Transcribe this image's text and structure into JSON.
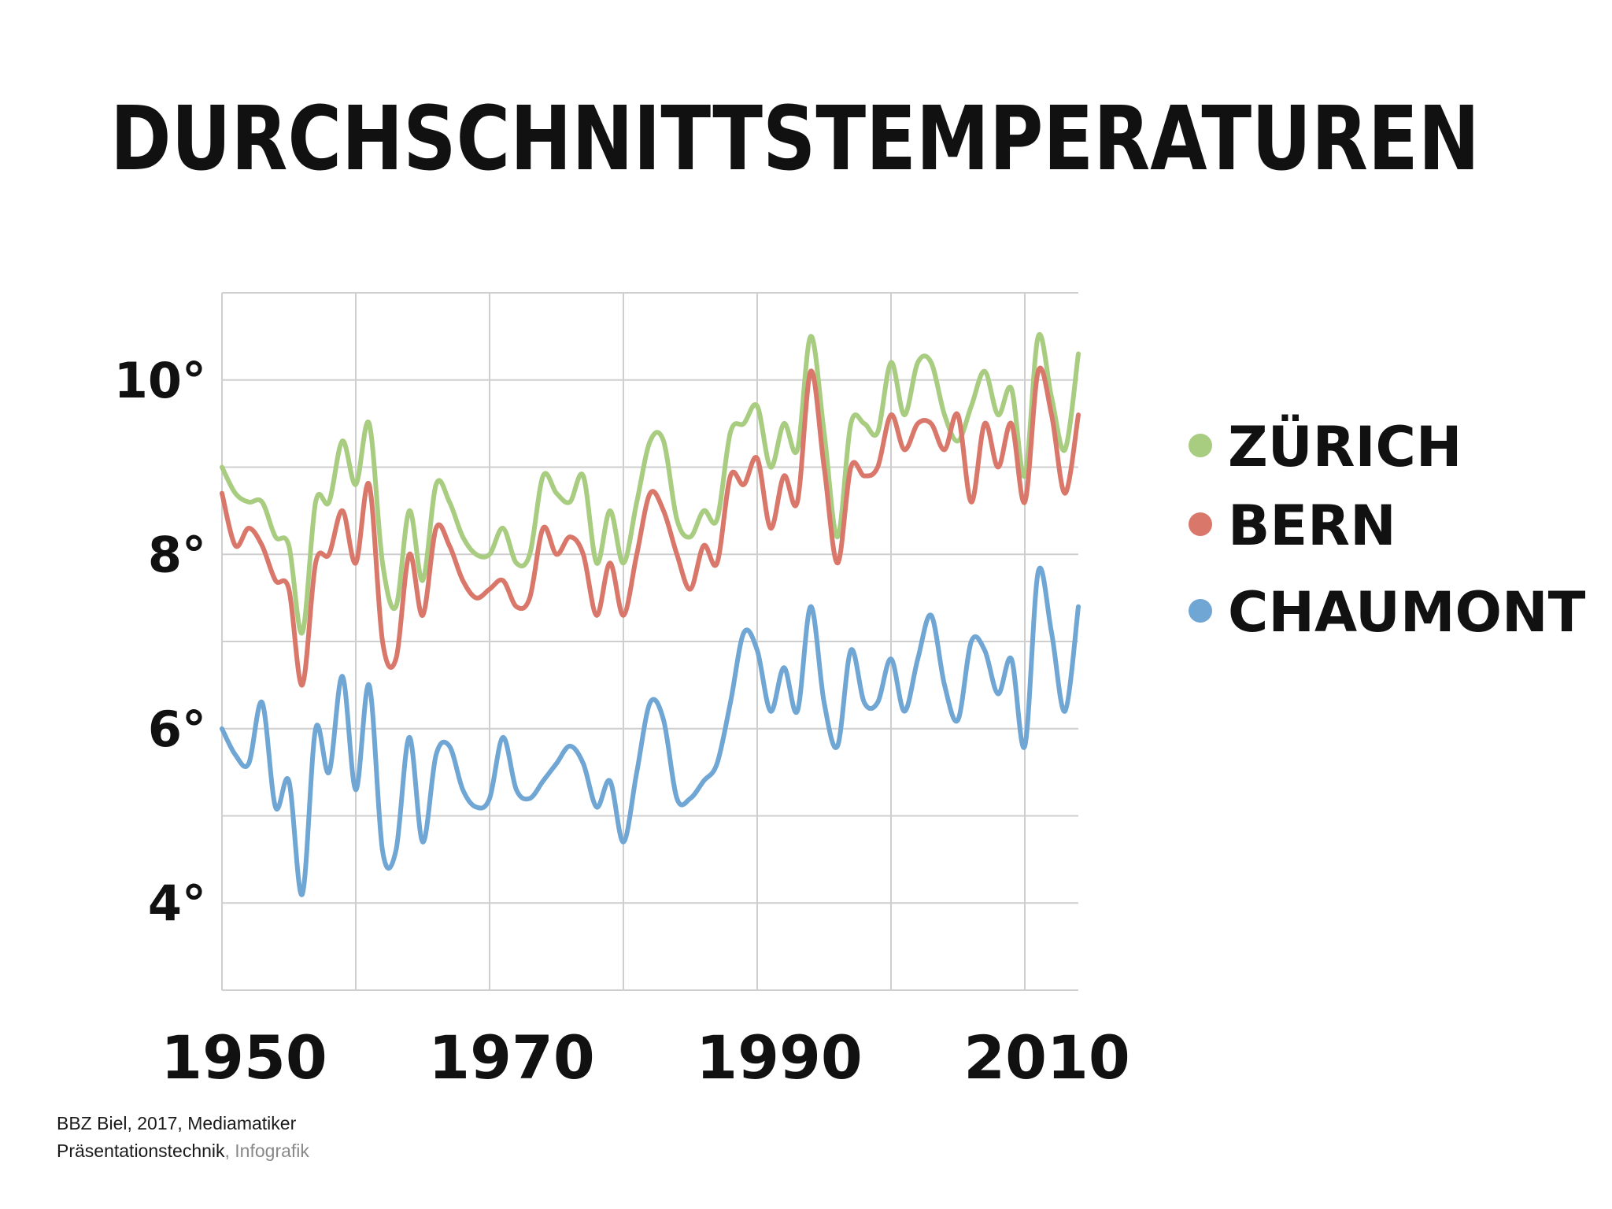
{
  "chart_data": {
    "type": "line",
    "title": "DURCHSCHNITTSTEMPERATUREN",
    "xlabel": "",
    "ylabel": "",
    "xlim": [
      1950,
      2014
    ],
    "ylim": [
      3,
      11
    ],
    "grid": true,
    "legend_position": "right",
    "y_ticks": [
      {
        "value": 4,
        "label": "4°"
      },
      {
        "value": 6,
        "label": "6°"
      },
      {
        "value": 8,
        "label": "8°"
      },
      {
        "value": 10,
        "label": "10°"
      }
    ],
    "x_ticks": [
      {
        "value": 1950,
        "label": "1950"
      },
      {
        "value": 1970,
        "label": "1970"
      },
      {
        "value": 1990,
        "label": "1990"
      },
      {
        "value": 2010,
        "label": "2010"
      }
    ],
    "x_gridlines": [
      1950,
      1960,
      1970,
      1980,
      1990,
      2000,
      2010
    ],
    "y_gridlines": [
      4,
      5,
      6,
      7,
      8,
      9,
      10,
      11
    ],
    "x": [
      1950,
      1951,
      1952,
      1953,
      1954,
      1955,
      1956,
      1957,
      1958,
      1959,
      1960,
      1961,
      1962,
      1963,
      1964,
      1965,
      1966,
      1967,
      1968,
      1969,
      1970,
      1971,
      1972,
      1973,
      1974,
      1975,
      1976,
      1977,
      1978,
      1979,
      1980,
      1981,
      1982,
      1983,
      1984,
      1985,
      1986,
      1987,
      1988,
      1989,
      1990,
      1991,
      1992,
      1993,
      1994,
      1995,
      1996,
      1997,
      1998,
      1999,
      2000,
      2001,
      2002,
      2003,
      2004,
      2005,
      2006,
      2007,
      2008,
      2009,
      2010,
      2011,
      2012,
      2013,
      2014
    ],
    "series": [
      {
        "name": "ZÜRICH",
        "color": "#a8cc80",
        "values": [
          9.0,
          8.7,
          8.6,
          8.6,
          8.2,
          8.1,
          7.1,
          8.6,
          8.6,
          9.3,
          8.8,
          9.5,
          7.9,
          7.4,
          8.5,
          7.7,
          8.8,
          8.6,
          8.2,
          8.0,
          8.0,
          8.3,
          7.9,
          8.0,
          8.9,
          8.7,
          8.6,
          8.9,
          7.9,
          8.5,
          7.9,
          8.6,
          9.3,
          9.3,
          8.4,
          8.2,
          8.5,
          8.4,
          9.4,
          9.5,
          9.7,
          9.0,
          9.5,
          9.2,
          10.5,
          9.4,
          8.2,
          9.5,
          9.5,
          9.4,
          10.2,
          9.6,
          10.2,
          10.2,
          9.6,
          9.3,
          9.7,
          10.1,
          9.6,
          9.9,
          8.9,
          10.5,
          9.8,
          9.2,
          10.3
        ]
      },
      {
        "name": "BERN",
        "color": "#d9776a",
        "values": [
          8.7,
          8.1,
          8.3,
          8.1,
          7.7,
          7.6,
          6.5,
          7.9,
          8.0,
          8.5,
          7.9,
          8.8,
          7.0,
          6.8,
          8.0,
          7.3,
          8.3,
          8.1,
          7.7,
          7.5,
          7.6,
          7.7,
          7.4,
          7.5,
          8.3,
          8.0,
          8.2,
          8.0,
          7.3,
          7.9,
          7.3,
          8.0,
          8.7,
          8.5,
          8.0,
          7.6,
          8.1,
          7.9,
          8.9,
          8.8,
          9.1,
          8.3,
          8.9,
          8.6,
          10.1,
          9.0,
          7.9,
          9.0,
          8.9,
          9.0,
          9.6,
          9.2,
          9.5,
          9.5,
          9.2,
          9.6,
          8.6,
          9.5,
          9.0,
          9.5,
          8.6,
          10.1,
          9.6,
          8.7,
          9.6
        ]
      },
      {
        "name": "CHAUMONT",
        "color": "#6fa6d4",
        "values": [
          6.0,
          5.7,
          5.6,
          6.3,
          5.1,
          5.4,
          4.1,
          6.0,
          5.5,
          6.6,
          5.3,
          6.5,
          4.6,
          4.6,
          5.9,
          4.7,
          5.7,
          5.8,
          5.3,
          5.1,
          5.2,
          5.9,
          5.3,
          5.2,
          5.4,
          5.6,
          5.8,
          5.6,
          5.1,
          5.4,
          4.7,
          5.5,
          6.3,
          6.1,
          5.2,
          5.2,
          5.4,
          5.6,
          6.3,
          7.1,
          6.9,
          6.2,
          6.7,
          6.2,
          7.4,
          6.3,
          5.8,
          6.9,
          6.3,
          6.3,
          6.8,
          6.2,
          6.8,
          7.3,
          6.5,
          6.1,
          7.0,
          6.9,
          6.4,
          6.8,
          5.8,
          7.8,
          7.1,
          6.2,
          7.4
        ]
      }
    ]
  },
  "caption": {
    "line1": "BBZ Biel, 2017, Mediamatiker",
    "line2_main": "Präsentationstechnik",
    "line2_muted": ", Infografik"
  }
}
